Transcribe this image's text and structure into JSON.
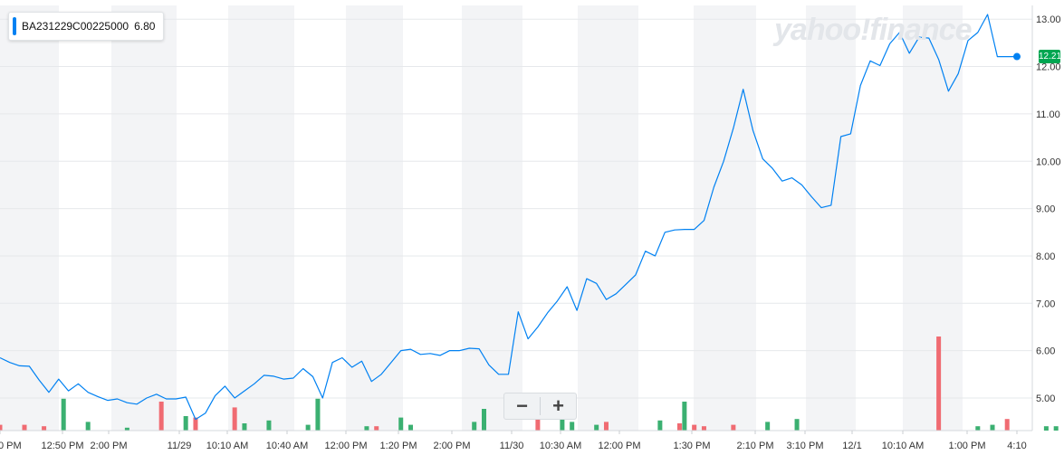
{
  "legend": {
    "symbol": "BA231229C00225000",
    "value": "6.80",
    "color": "#0081f2"
  },
  "watermark": "yahoo!finance",
  "last_price": {
    "label": "12.21",
    "color": "#00a651"
  },
  "zoom": {
    "minus_label": "−",
    "plus_label": "+"
  },
  "colors": {
    "line": "#0081f2",
    "volume_up": "#3bb071",
    "volume_down": "#f06b72",
    "band": "#f3f4f6",
    "grid": "#e6e8eb"
  },
  "chart_data": {
    "type": "line",
    "ylim": [
      4.3,
      13.2
    ],
    "y_ticks": [
      "5.00",
      "6.00",
      "7.00",
      "8.00",
      "9.00",
      "10.00",
      "11.00",
      "12.00",
      "13.00"
    ],
    "x_tick_labels": [
      "0 PM",
      "12:50 PM",
      "2:00 PM",
      "11/29",
      "10:10 AM",
      "10:40 AM",
      "12:00 PM",
      "1:20 PM",
      "2:00 PM",
      "11/30",
      "10:30 AM",
      "12:00 PM",
      "1:30 PM",
      "2:10 PM",
      "3:10 PM",
      "12/1",
      "10:10 AM",
      "1:00 PM",
      "4:10"
    ],
    "grid": true,
    "series": [
      {
        "values": [
          5.85,
          5.75,
          5.68,
          5.67,
          5.38,
          5.12,
          5.4,
          5.15,
          5.3,
          5.12,
          5.03,
          4.95,
          4.98,
          4.9,
          4.87,
          5.0,
          5.08,
          4.98,
          4.98,
          5.02,
          4.55,
          4.68,
          5.05,
          5.25,
          5.0,
          5.15,
          5.3,
          5.48,
          5.46,
          5.4,
          5.42,
          5.62,
          5.45,
          5.0,
          5.75,
          5.85,
          5.65,
          5.78,
          5.35,
          5.5,
          5.75,
          6.0,
          6.03,
          5.92,
          5.94,
          5.9,
          6.0,
          6.0,
          6.05,
          6.04,
          5.7,
          5.5,
          5.5,
          6.82,
          6.25,
          6.5,
          6.8,
          7.05,
          7.35,
          6.85,
          7.52,
          7.42,
          7.08,
          7.2,
          7.4,
          7.6,
          8.1,
          8.0,
          8.5,
          8.55,
          8.56,
          8.56,
          8.75,
          9.45,
          10.0,
          10.7,
          11.52,
          10.65,
          10.05,
          9.85,
          9.58,
          9.65,
          9.5,
          9.25,
          9.02,
          9.07,
          10.52,
          10.58,
          11.6,
          12.12,
          12.02,
          12.48,
          12.72,
          12.28,
          12.62,
          12.6,
          12.15,
          11.48,
          11.85,
          12.55,
          12.72,
          13.1,
          12.21,
          12.21,
          12.21
        ]
      }
    ],
    "volume": [
      {
        "x": 0.0,
        "v": 0.4,
        "dir": "down"
      },
      {
        "x": 2.5,
        "v": 0.4,
        "dir": "down"
      },
      {
        "x": 4.5,
        "v": 0.3,
        "dir": "down"
      },
      {
        "x": 6.5,
        "v": 2.2,
        "dir": "up"
      },
      {
        "x": 9.0,
        "v": 0.6,
        "dir": "up"
      },
      {
        "x": 13.0,
        "v": 0.2,
        "dir": "up"
      },
      {
        "x": 16.5,
        "v": 2.0,
        "dir": "down"
      },
      {
        "x": 19.0,
        "v": 1.0,
        "dir": "up"
      },
      {
        "x": 20.0,
        "v": 0.9,
        "dir": "down"
      },
      {
        "x": 24.0,
        "v": 1.6,
        "dir": "down"
      },
      {
        "x": 25.0,
        "v": 0.5,
        "dir": "up"
      },
      {
        "x": 27.5,
        "v": 0.7,
        "dir": "up"
      },
      {
        "x": 31.5,
        "v": 0.4,
        "dir": "up"
      },
      {
        "x": 32.5,
        "v": 2.2,
        "dir": "up"
      },
      {
        "x": 37.5,
        "v": 0.3,
        "dir": "up"
      },
      {
        "x": 38.5,
        "v": 0.3,
        "dir": "down"
      },
      {
        "x": 41.0,
        "v": 0.9,
        "dir": "up"
      },
      {
        "x": 42.0,
        "v": 0.4,
        "dir": "up"
      },
      {
        "x": 48.5,
        "v": 0.6,
        "dir": "up"
      },
      {
        "x": 49.5,
        "v": 1.5,
        "dir": "up"
      },
      {
        "x": 55.0,
        "v": 0.9,
        "dir": "down"
      },
      {
        "x": 57.5,
        "v": 1.6,
        "dir": "up"
      },
      {
        "x": 58.5,
        "v": 0.6,
        "dir": "up"
      },
      {
        "x": 61.0,
        "v": 0.4,
        "dir": "up"
      },
      {
        "x": 62.0,
        "v": 0.6,
        "dir": "down"
      },
      {
        "x": 67.5,
        "v": 0.7,
        "dir": "up"
      },
      {
        "x": 69.5,
        "v": 0.5,
        "dir": "down"
      },
      {
        "x": 70.0,
        "v": 2.0,
        "dir": "up"
      },
      {
        "x": 71.0,
        "v": 0.4,
        "dir": "down"
      },
      {
        "x": 72.0,
        "v": 0.3,
        "dir": "down"
      },
      {
        "x": 75.0,
        "v": 0.4,
        "dir": "down"
      },
      {
        "x": 78.5,
        "v": 0.6,
        "dir": "up"
      },
      {
        "x": 81.5,
        "v": 0.8,
        "dir": "up"
      },
      {
        "x": 96.0,
        "v": 6.5,
        "dir": "down"
      },
      {
        "x": 100.0,
        "v": 0.3,
        "dir": "up"
      },
      {
        "x": 101.5,
        "v": 0.4,
        "dir": "up"
      },
      {
        "x": 103.0,
        "v": 0.8,
        "dir": "down"
      },
      {
        "x": 107.0,
        "v": 0.3,
        "dir": "up"
      },
      {
        "x": 108.0,
        "v": 0.3,
        "dir": "up"
      },
      {
        "x": 112.5,
        "v": 0.9,
        "dir": "up"
      },
      {
        "x": 117.0,
        "v": 0.4,
        "dir": "down"
      },
      {
        "x": 119.5,
        "v": 0.4,
        "dir": "down"
      },
      {
        "x": 120.5,
        "v": 0.4,
        "dir": "up"
      },
      {
        "x": 125.5,
        "v": 0.6,
        "dir": "down"
      },
      {
        "x": 130.5,
        "v": 0.3,
        "dir": "up"
      },
      {
        "x": 131.5,
        "v": 0.4,
        "dir": "up"
      }
    ]
  }
}
